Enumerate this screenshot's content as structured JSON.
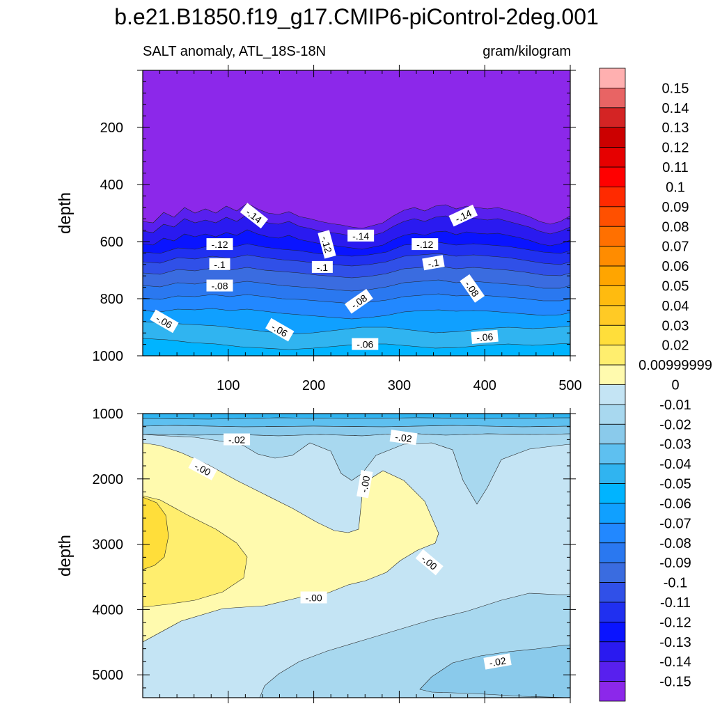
{
  "title": "b.e21.B1850.f19_g17.CMIP6-piControl-2deg.001",
  "chart_data": {
    "type": "contour",
    "title": "b.e21.B1850.f19_g17.CMIP6-piControl-2deg.001",
    "left_string": "SALT anomaly, ATL_18S-18N",
    "right_string": "gram/kilogram",
    "xlabel": "",
    "ylabel": "depth",
    "xlim": [
      0,
      500
    ],
    "x_ticks": [
      "100",
      "200",
      "300",
      "400",
      "500"
    ],
    "panels": [
      {
        "name": "upper",
        "ylim": [
          0,
          1000
        ],
        "y_ticks": [
          "200",
          "400",
          "600",
          "800",
          "1000"
        ],
        "contour_labels": [
          {
            "text": "-.14",
            "x": 130,
            "y": 510,
            "angle": 38
          },
          {
            "text": "-.14",
            "x": 255,
            "y": 580,
            "angle": 0
          },
          {
            "text": "-.14",
            "x": 375,
            "y": 510,
            "angle": -25
          },
          {
            "text": "-.12",
            "x": 90,
            "y": 610,
            "angle": 0
          },
          {
            "text": "-.12",
            "x": 215,
            "y": 610,
            "angle": 75
          },
          {
            "text": "-.12",
            "x": 330,
            "y": 610,
            "angle": 0
          },
          {
            "text": "-.1",
            "x": 90,
            "y": 680,
            "angle": 0
          },
          {
            "text": "-.1",
            "x": 210,
            "y": 690,
            "angle": 0
          },
          {
            "text": "-.1",
            "x": 340,
            "y": 675,
            "angle": -10
          },
          {
            "text": "-.08",
            "x": 90,
            "y": 755,
            "angle": 0
          },
          {
            "text": "-.08",
            "x": 253,
            "y": 810,
            "angle": -35
          },
          {
            "text": "-.08",
            "x": 385,
            "y": 765,
            "angle": 55
          },
          {
            "text": "-.06",
            "x": 25,
            "y": 880,
            "angle": 30
          },
          {
            "text": "-.06",
            "x": 160,
            "y": 910,
            "angle": 30
          },
          {
            "text": "-.06",
            "x": 260,
            "y": 960,
            "angle": 0
          },
          {
            "text": "-.06",
            "x": 400,
            "y": 935,
            "angle": -5
          }
        ]
      },
      {
        "name": "lower",
        "ylim": [
          1000,
          5350
        ],
        "y_ticks": [
          "1000",
          "2000",
          "3000",
          "4000",
          "5000"
        ],
        "contour_labels": [
          {
            "text": "-.02",
            "x": 110,
            "y": 1400,
            "angle": 0
          },
          {
            "text": "-.02",
            "x": 305,
            "y": 1370,
            "angle": 8
          },
          {
            "text": "-.02",
            "x": 415,
            "y": 4800,
            "angle": -10
          },
          {
            "text": "-.00",
            "x": 70,
            "y": 1850,
            "angle": 28
          },
          {
            "text": "-.00",
            "x": 260,
            "y": 2080,
            "angle": -80
          },
          {
            "text": "-.00",
            "x": 335,
            "y": 3280,
            "angle": 40
          },
          {
            "text": "-.00",
            "x": 200,
            "y": 3820,
            "angle": 0
          }
        ]
      }
    ],
    "colorbar": {
      "labels": [
        "0.15",
        "0.14",
        "0.13",
        "0.12",
        "0.11",
        "0.1",
        "0.09",
        "0.08",
        "0.07",
        "0.06",
        "0.05",
        "0.04",
        "0.03",
        "0.02",
        "0.00999999",
        "0",
        "-0.01",
        "-0.02",
        "-0.03",
        "-0.04",
        "-0.05",
        "-0.06",
        "-0.07",
        "-0.08",
        "-0.09",
        "-0.1",
        "-0.11",
        "-0.12",
        "-0.13",
        "-0.14",
        "-0.15"
      ],
      "colors": [
        "#FFB0B0",
        "#E86464",
        "#D42424",
        "#CC0000",
        "#E60000",
        "#FF0000",
        "#FF2A00",
        "#FF5000",
        "#FF7000",
        "#FF8C00",
        "#FFA500",
        "#FFBB0F",
        "#FFCA25",
        "#FFDE3A",
        "#FFEE6E",
        "#FFFAAE",
        "#C4E4F4",
        "#A8D8EF",
        "#8ACAEB",
        "#5EC0F0",
        "#30B4F0",
        "#00B4FF",
        "#10A0FF",
        "#2288FF",
        "#2A78F0",
        "#3A6CE0",
        "#3050E8",
        "#2030F0",
        "#0A14FF",
        "#2A1AF0",
        "#5820EE",
        "#8C28EA"
      ]
    }
  }
}
